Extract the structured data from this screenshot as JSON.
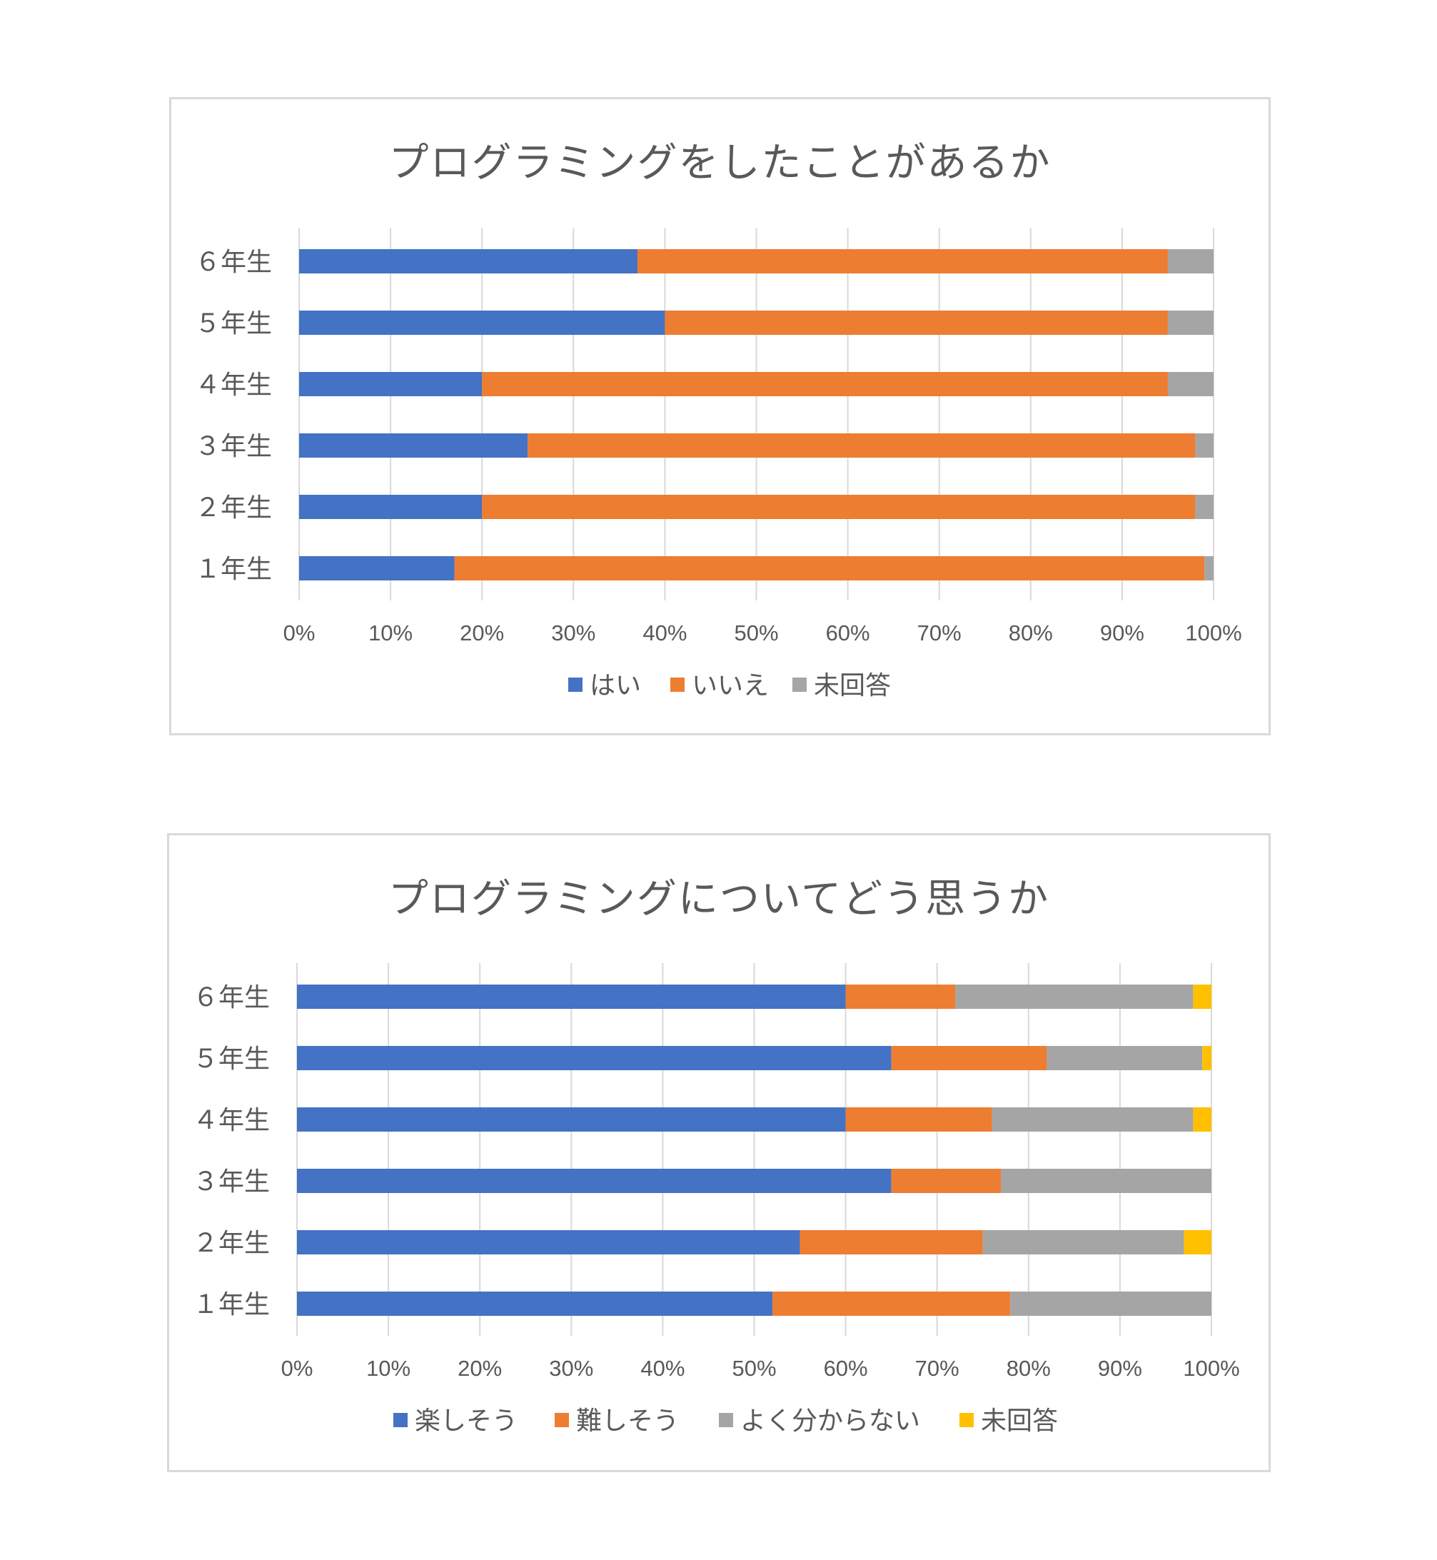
{
  "colors": {
    "blue": "#4472c4",
    "orange": "#ed7d31",
    "gray": "#a5a5a5",
    "yellow": "#ffc000",
    "grid": "#d9d9d9",
    "text": "#595959"
  },
  "chart_data": [
    {
      "type": "bar",
      "orientation": "horizontal",
      "stacked": "percent",
      "title": "プログラミングをしたことがあるか",
      "categories": [
        "６年生",
        "５年生",
        "４年生",
        "３年生",
        "２年生",
        "１年生"
      ],
      "series": [
        {
          "name": "はい",
          "color": "#4472c4",
          "values": [
            37,
            40,
            20,
            25,
            20,
            17
          ]
        },
        {
          "name": "いいえ",
          "color": "#ed7d31",
          "values": [
            58,
            55,
            75,
            73,
            78,
            82
          ]
        },
        {
          "name": "未回答",
          "color": "#a5a5a5",
          "values": [
            5,
            5,
            5,
            2,
            2,
            1
          ]
        }
      ],
      "xlim": [
        0,
        100
      ],
      "xticks": [
        "0%",
        "10%",
        "20%",
        "30%",
        "40%",
        "50%",
        "60%",
        "70%",
        "80%",
        "90%",
        "100%"
      ],
      "grid": true,
      "legend": "bottom"
    },
    {
      "type": "bar",
      "orientation": "horizontal",
      "stacked": "percent",
      "title": "プログラミングについてどう思うか",
      "categories": [
        "６年生",
        "５年生",
        "４年生",
        "３年生",
        "２年生",
        "１年生"
      ],
      "series": [
        {
          "name": "楽しそう",
          "color": "#4472c4",
          "values": [
            60,
            65,
            60,
            65,
            55,
            52
          ]
        },
        {
          "name": "難しそう",
          "color": "#ed7d31",
          "values": [
            12,
            17,
            16,
            12,
            20,
            26
          ]
        },
        {
          "name": "よく分からない",
          "color": "#a5a5a5",
          "values": [
            26,
            17,
            22,
            23,
            22,
            22
          ]
        },
        {
          "name": "未回答",
          "color": "#ffc000",
          "values": [
            2,
            1,
            2,
            0,
            3,
            0
          ]
        }
      ],
      "xlim": [
        0,
        100
      ],
      "xticks": [
        "0%",
        "10%",
        "20%",
        "30%",
        "40%",
        "50%",
        "60%",
        "70%",
        "80%",
        "90%",
        "100%"
      ],
      "grid": true,
      "legend": "bottom"
    }
  ]
}
